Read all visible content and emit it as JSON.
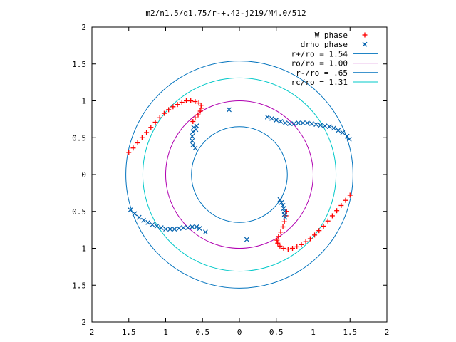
{
  "chart_data": {
    "type": "scatter",
    "title": "m2/n1.5/q1.75/r-+.42-j219/M4.0/512",
    "xlabel": "",
    "ylabel": "",
    "xlim": [
      -2,
      2
    ],
    "ylim": [
      -2,
      2
    ],
    "x_ticks": [
      -2,
      -1.5,
      -1,
      -0.5,
      0,
      0.5,
      1,
      1.5,
      2
    ],
    "x_tick_labels": [
      "2",
      "1.5",
      "1",
      "0.5",
      "0",
      "0.5",
      "1",
      "1.5",
      "2"
    ],
    "y_ticks": [
      2,
      1.5,
      1,
      0.5,
      0,
      -0.5,
      -1,
      -1.5,
      -2
    ],
    "y_tick_labels": [
      "2",
      "1.5",
      "1",
      "0.5",
      "0",
      "0.5",
      "1",
      "1.5",
      "2"
    ],
    "grid": false,
    "legend_position": "top-right",
    "series": [
      {
        "name": "W phase",
        "marker": "plus",
        "color": "#ff0000",
        "points": [
          [
            -1.5,
            0.3
          ],
          [
            -1.44,
            0.36
          ],
          [
            -1.38,
            0.43
          ],
          [
            -1.32,
            0.5
          ],
          [
            -1.26,
            0.57
          ],
          [
            -1.2,
            0.64
          ],
          [
            -1.14,
            0.71
          ],
          [
            -1.08,
            0.77
          ],
          [
            -1.02,
            0.83
          ],
          [
            -0.96,
            0.88
          ],
          [
            -0.9,
            0.92
          ],
          [
            -0.84,
            0.95
          ],
          [
            -0.78,
            0.98
          ],
          [
            -0.72,
            1.0
          ],
          [
            -0.66,
            1.0
          ],
          [
            -0.6,
            0.99
          ],
          [
            -0.55,
            0.97
          ],
          [
            -0.52,
            0.94
          ],
          [
            -0.51,
            0.9
          ],
          [
            -0.53,
            0.86
          ],
          [
            -0.56,
            0.81
          ],
          [
            -0.6,
            0.77
          ],
          [
            -0.63,
            0.72
          ],
          [
            1.5,
            -0.28
          ],
          [
            1.44,
            -0.35
          ],
          [
            1.38,
            -0.42
          ],
          [
            1.32,
            -0.49
          ],
          [
            1.26,
            -0.56
          ],
          [
            1.2,
            -0.63
          ],
          [
            1.14,
            -0.7
          ],
          [
            1.08,
            -0.76
          ],
          [
            1.02,
            -0.82
          ],
          [
            0.96,
            -0.87
          ],
          [
            0.9,
            -0.91
          ],
          [
            0.84,
            -0.95
          ],
          [
            0.78,
            -0.98
          ],
          [
            0.72,
            -1.0
          ],
          [
            0.66,
            -1.01
          ],
          [
            0.6,
            -1.0
          ],
          [
            0.55,
            -0.97
          ],
          [
            0.52,
            -0.93
          ],
          [
            0.51,
            -0.89
          ],
          [
            0.53,
            -0.84
          ],
          [
            0.56,
            -0.78
          ],
          [
            0.59,
            -0.71
          ],
          [
            0.61,
            -0.64
          ],
          [
            0.63,
            -0.56
          ],
          [
            0.64,
            -0.5
          ]
        ]
      },
      {
        "name": "drho phase",
        "marker": "cross",
        "color": "#0060ad",
        "points": [
          [
            -0.62,
            0.64
          ],
          [
            -0.63,
            0.58
          ],
          [
            -0.64,
            0.52
          ],
          [
            -0.64,
            0.46
          ],
          [
            -0.63,
            0.4
          ],
          [
            -0.6,
            0.36
          ],
          [
            -0.58,
            0.66
          ],
          [
            -0.59,
            0.61
          ],
          [
            -1.48,
            -0.48
          ],
          [
            -1.42,
            -0.53
          ],
          [
            -1.36,
            -0.58
          ],
          [
            -1.3,
            -0.62
          ],
          [
            -1.24,
            -0.65
          ],
          [
            -1.18,
            -0.68
          ],
          [
            -1.12,
            -0.7
          ],
          [
            -1.06,
            -0.72
          ],
          [
            -1.0,
            -0.74
          ],
          [
            -0.94,
            -0.74
          ],
          [
            -0.88,
            -0.74
          ],
          [
            -0.82,
            -0.73
          ],
          [
            -0.76,
            -0.72
          ],
          [
            -0.7,
            -0.72
          ],
          [
            -0.64,
            -0.71
          ],
          [
            -0.58,
            -0.71
          ],
          [
            -0.54,
            -0.73
          ],
          [
            -0.46,
            -0.78
          ],
          [
            0.1,
            -0.88
          ],
          [
            0.38,
            0.78
          ],
          [
            0.44,
            0.76
          ],
          [
            0.5,
            0.74
          ],
          [
            0.56,
            0.72
          ],
          [
            0.62,
            0.7
          ],
          [
            0.68,
            0.69
          ],
          [
            0.74,
            0.69
          ],
          [
            0.8,
            0.7
          ],
          [
            0.86,
            0.7
          ],
          [
            0.92,
            0.7
          ],
          [
            0.98,
            0.69
          ],
          [
            1.04,
            0.68
          ],
          [
            1.1,
            0.67
          ],
          [
            1.16,
            0.66
          ],
          [
            1.22,
            0.65
          ],
          [
            1.28,
            0.63
          ],
          [
            1.34,
            0.6
          ],
          [
            1.4,
            0.57
          ],
          [
            1.46,
            0.52
          ],
          [
            1.49,
            0.48
          ],
          [
            0.55,
            -0.34
          ],
          [
            0.57,
            -0.38
          ],
          [
            0.59,
            -0.42
          ],
          [
            0.6,
            -0.46
          ],
          [
            0.61,
            -0.5
          ],
          [
            0.61,
            -0.54
          ],
          [
            0.62,
            -0.58
          ],
          [
            -0.14,
            0.88
          ]
        ]
      },
      {
        "name": "r+/ro = 1.54",
        "type": "circle",
        "radius": 1.54,
        "color": "#0072bd"
      },
      {
        "name": "ro/ro = 1.00",
        "type": "circle",
        "radius": 1.0,
        "color": "#b000b0"
      },
      {
        "name": "r-/ro = .65",
        "type": "circle",
        "radius": 0.65,
        "color": "#0072bd"
      },
      {
        "name": "rc/ro = 1.31",
        "type": "circle",
        "radius": 1.31,
        "color": "#00c8c8"
      }
    ]
  }
}
